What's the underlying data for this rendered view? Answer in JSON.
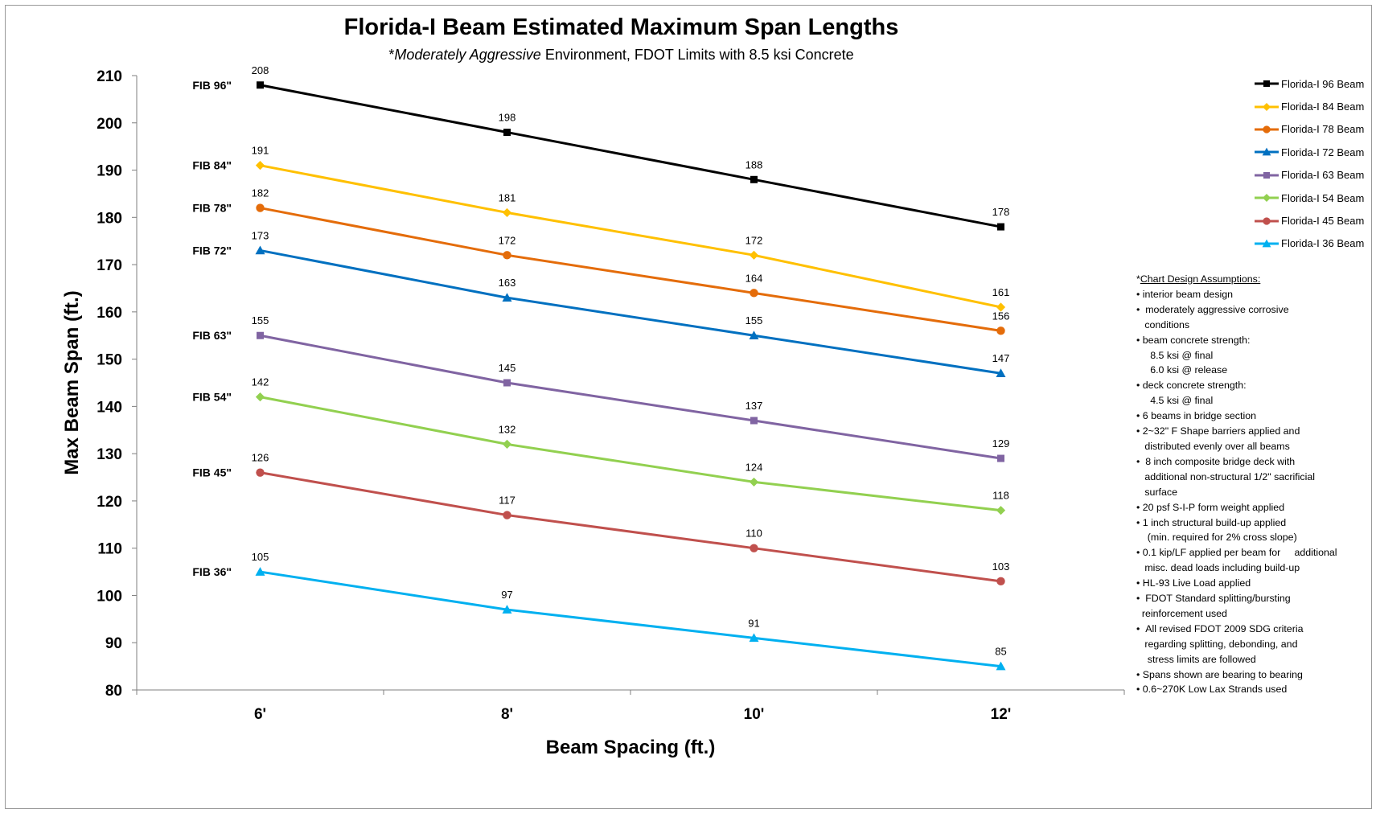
{
  "chart_data": {
    "type": "line",
    "title": "Florida-I Beam Estimated Maximum Span Lengths",
    "subtitle_prefix": "*",
    "subtitle_italic": "Moderately Aggressive",
    "subtitle_rest": " Environment, FDOT Limits with 8.5 ksi Concrete",
    "xlabel": "Beam Spacing (ft.)",
    "ylabel": "Max Beam Span (ft.)",
    "categories": [
      "6'",
      "8'",
      "10'",
      "12'"
    ],
    "ylim": [
      80,
      210
    ],
    "yticks": [
      80,
      90,
      100,
      110,
      120,
      130,
      140,
      150,
      160,
      170,
      180,
      190,
      200,
      210
    ],
    "grid": false,
    "legend_position": "right",
    "series": [
      {
        "name": "Florida-I 96 Beam",
        "label": "FIB 96\"",
        "color": "#000000",
        "marker": "square",
        "values": [
          208,
          198,
          188,
          178
        ]
      },
      {
        "name": "Florida-I 84 Beam",
        "label": "FIB 84\"",
        "color": "#FFC000",
        "marker": "diamond",
        "values": [
          191,
          181,
          172,
          161
        ]
      },
      {
        "name": "Florida-I 78 Beam",
        "label": "FIB 78\"",
        "color": "#E46C0A",
        "marker": "circle",
        "values": [
          182,
          172,
          164,
          156
        ]
      },
      {
        "name": "Florida-I 72 Beam",
        "label": "FIB 72\"",
        "color": "#0070C0",
        "marker": "triangle",
        "values": [
          173,
          163,
          155,
          147
        ]
      },
      {
        "name": "Florida-I 63 Beam",
        "label": "FIB 63\"",
        "color": "#8064A2",
        "marker": "square",
        "values": [
          155,
          145,
          137,
          129
        ]
      },
      {
        "name": "Florida-I 54 Beam",
        "label": "FIB 54\"",
        "color": "#92D050",
        "marker": "diamond",
        "values": [
          142,
          132,
          124,
          118
        ]
      },
      {
        "name": "Florida-I 45 Beam",
        "label": "FIB 45\"",
        "color": "#C0504D",
        "marker": "circle",
        "values": [
          126,
          117,
          110,
          103
        ]
      },
      {
        "name": "Florida-I 36 Beam",
        "label": "FIB 36\"",
        "color": "#00B0F0",
        "marker": "triangle",
        "values": [
          105,
          97,
          91,
          85
        ]
      }
    ]
  },
  "notes": {
    "heading_prefix": "*",
    "heading": "Chart Design Assumptions:",
    "lines": [
      "• interior beam design",
      "•  moderately aggressive corrosive",
      "   conditions",
      "• beam concrete strength:",
      "     8.5 ksi @ final",
      "     6.0 ksi @ release",
      "• deck concrete strength:",
      "     4.5 ksi @ final",
      "• 6 beams in bridge section",
      "• 2~32\" F Shape barriers applied and",
      "   distributed evenly over all beams",
      "•  8 inch composite bridge deck with",
      "   additional non-structural 1/2\" sacrificial",
      "   surface",
      "• 20 psf S-I-P form weight applied",
      "• 1 inch structural build-up applied",
      "    (min. required for 2% cross slope)",
      "• 0.1 kip/LF applied per beam for     additional",
      "   misc. dead loads including build-up",
      "• HL-93 Live Load applied",
      "•  FDOT Standard splitting/bursting",
      "  reinforcement used",
      "•  All revised FDOT 2009 SDG criteria",
      "   regarding splitting, debonding, and",
      "    stress limits are followed",
      "• Spans shown are bearing to bearing",
      "• 0.6~270K Low Lax Strands used"
    ]
  }
}
